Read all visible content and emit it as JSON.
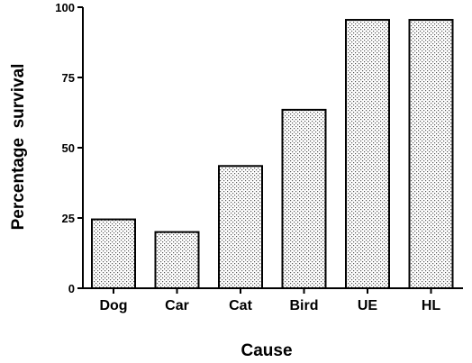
{
  "chart_data": {
    "type": "bar",
    "categories": [
      "Dog",
      "Car",
      "Cat",
      "Bird",
      "UE",
      "HL"
    ],
    "values": [
      24.5,
      20,
      43.5,
      63.5,
      95.5,
      95.5
    ],
    "xlabel": "Cause",
    "ylabel": "Percentage  survival",
    "ylim": [
      0,
      100
    ],
    "yticks": [
      "0",
      "25",
      "50",
      "75",
      "100"
    ],
    "grid": false,
    "bar_fill": "dotted gray",
    "colors": {
      "bar_stroke": "#000000",
      "dots": "#555555"
    }
  }
}
